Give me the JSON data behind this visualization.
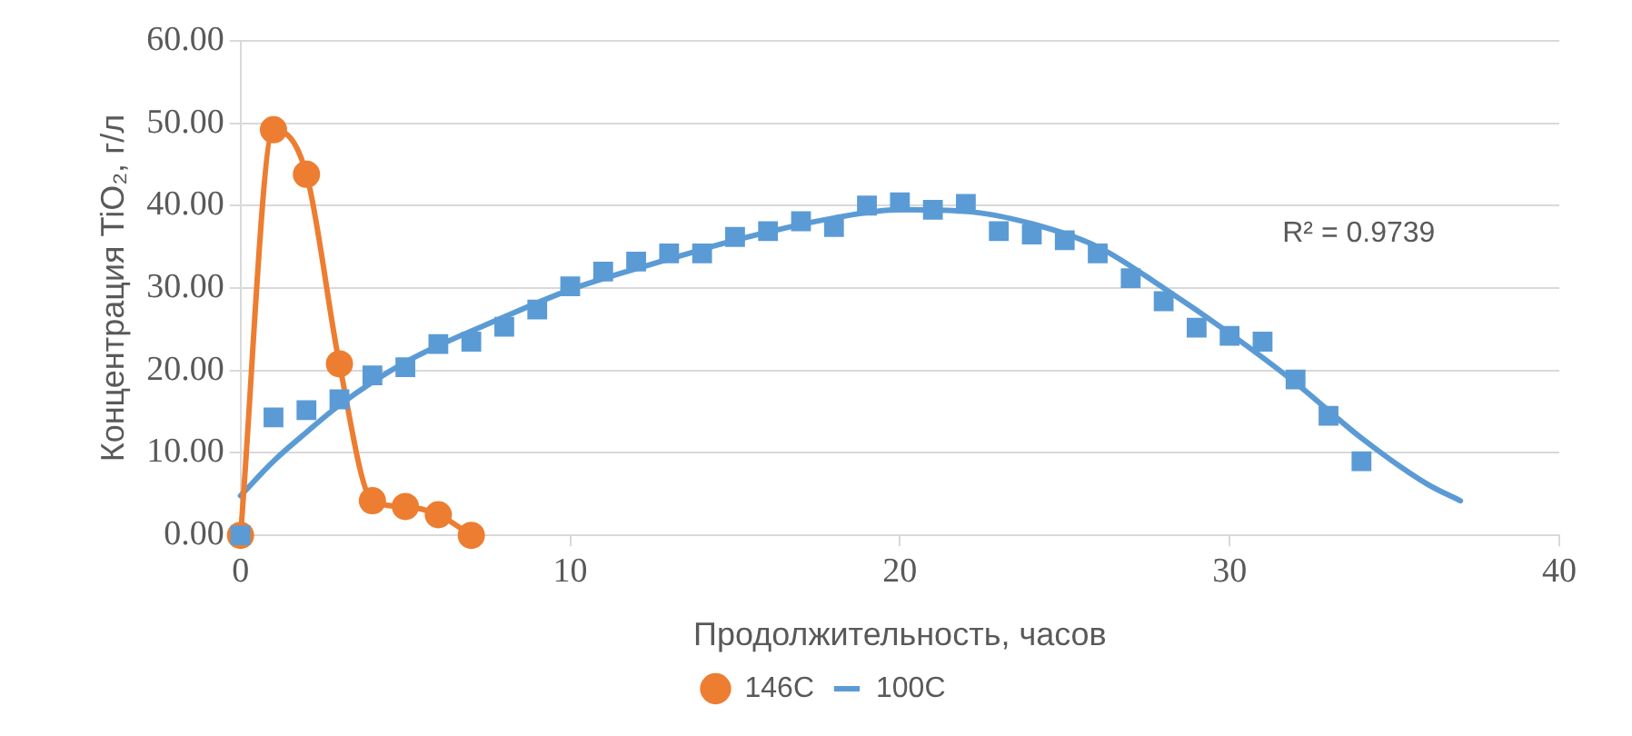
{
  "chart_data": {
    "type": "line",
    "xlabel": "Продолжительность, часов",
    "ylabel": "Концентрация TiO₂, г/л",
    "xlim": [
      0,
      40
    ],
    "xticks": [
      0,
      10,
      20,
      30,
      40
    ],
    "ylim": [
      0,
      60
    ],
    "yticks": [
      {
        "value": 0,
        "label": "0.00"
      },
      {
        "value": 10,
        "label": "10.00"
      },
      {
        "value": 20,
        "label": "20.00"
      },
      {
        "value": 30,
        "label": "30.00"
      },
      {
        "value": 40,
        "label": "40.00"
      },
      {
        "value": 50,
        "label": "50.00"
      },
      {
        "value": 60,
        "label": "60.00"
      }
    ],
    "grid": "y",
    "legend": "bottom",
    "annotations": [
      "R² = 0.9739"
    ],
    "series": [
      {
        "name": "146C",
        "type": "line",
        "marker": "circle",
        "color": "#ed7d31",
        "x": [
          0,
          1,
          2,
          3,
          4,
          5,
          6,
          7
        ],
        "values": [
          0,
          49.2,
          43.8,
          20.8,
          4.2,
          3.5,
          2.5,
          0
        ]
      },
      {
        "name": "100C",
        "type": "scatter",
        "marker": "square",
        "color": "#5b9bd5",
        "x": [
          0,
          1,
          2,
          3,
          4,
          5,
          6,
          7,
          8,
          9,
          10,
          11,
          12,
          13,
          14,
          15,
          16,
          17,
          18,
          19,
          20,
          21,
          22,
          23,
          24,
          25,
          26,
          27,
          28,
          29,
          30,
          31,
          32,
          33,
          34
        ],
        "values": [
          0,
          14.3,
          15.2,
          16.5,
          19.4,
          20.4,
          23.2,
          23.5,
          25.3,
          27.4,
          30.2,
          32.0,
          33.2,
          34.2,
          34.2,
          36.2,
          36.9,
          38.1,
          37.4,
          40.0,
          40.4,
          39.5,
          40.2,
          36.9,
          36.5,
          35.8,
          34.2,
          31.2,
          28.4,
          25.2,
          24.2,
          23.5,
          18.9,
          14.5,
          9.0
        ]
      },
      {
        "type": "line",
        "marker": "none",
        "color": "#5b9bd5",
        "x": [
          0,
          1,
          2,
          3,
          5,
          8,
          10,
          13,
          15,
          18,
          20,
          22,
          24,
          26,
          28,
          30,
          32,
          34,
          36,
          37
        ],
        "values": [
          4.8,
          9,
          12.5,
          15.8,
          21,
          26.5,
          29.8,
          33.5,
          35.8,
          38.5,
          39.5,
          39.3,
          37.8,
          35,
          30,
          24.5,
          18.5,
          11.8,
          6.2,
          4.2
        ]
      }
    ]
  }
}
